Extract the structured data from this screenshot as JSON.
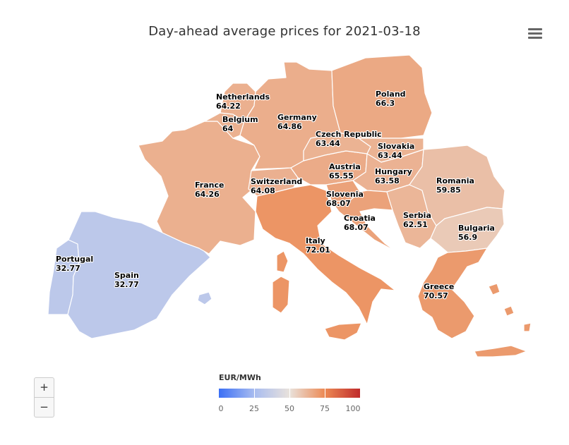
{
  "title": "Day-ahead average prices for 2021-03-18",
  "menu_icon": "hamburger-menu-icon",
  "zoom": {
    "in_label": "+",
    "out_label": "−"
  },
  "legend": {
    "title": "EUR/MWh",
    "min": 0,
    "max": 100,
    "ticks": [
      "0",
      "25",
      "50",
      "75",
      "100"
    ],
    "colors": [
      "#3b6ff5",
      "#a8bcf0",
      "#e9e2dc",
      "#ec8a55",
      "#c02b2b"
    ]
  },
  "countries": [
    {
      "name": "Portugal",
      "value": "32.77"
    },
    {
      "name": "Spain",
      "value": "32.77"
    },
    {
      "name": "France",
      "value": "64.26"
    },
    {
      "name": "Belgium",
      "value": "64"
    },
    {
      "name": "Netherlands",
      "value": "64.22"
    },
    {
      "name": "Germany",
      "value": "64.86"
    },
    {
      "name": "Switzerland",
      "value": "64.08"
    },
    {
      "name": "Italy",
      "value": "72.01"
    },
    {
      "name": "Austria",
      "value": "65.55"
    },
    {
      "name": "Czech Republic",
      "value": "63.44"
    },
    {
      "name": "Poland",
      "value": "66.3"
    },
    {
      "name": "Slovakia",
      "value": "63.44"
    },
    {
      "name": "Hungary",
      "value": "63.58"
    },
    {
      "name": "Slovenia",
      "value": "68.07"
    },
    {
      "name": "Croatia",
      "value": "68.07"
    },
    {
      "name": "Serbia",
      "value": "62.51"
    },
    {
      "name": "Romania",
      "value": "59.85"
    },
    {
      "name": "Bulgaria",
      "value": "56.9"
    },
    {
      "name": "Greece",
      "value": "70.57"
    }
  ]
}
